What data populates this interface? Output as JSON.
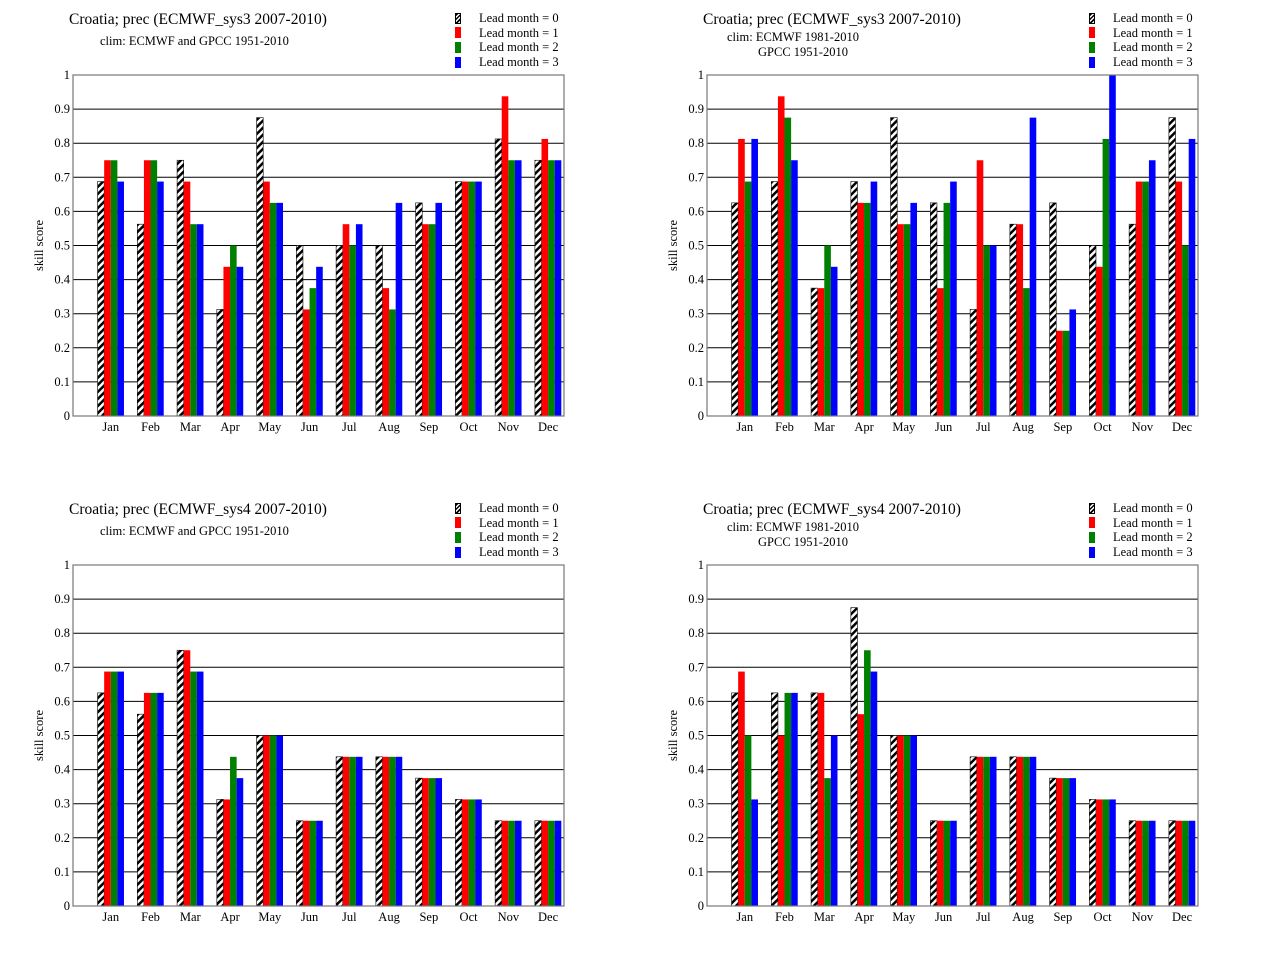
{
  "colors": {
    "lead0": "hatch-black-white",
    "lead1": "#ff0000",
    "lead2": "#008000",
    "lead3": "#0000ff",
    "grid": "#000000",
    "frame": "#777777"
  },
  "chart_data": [
    {
      "type": "bar",
      "title": "Croatia; prec (ECMWF_sys3 2007-2010)",
      "subtitle_lines": [
        "clim: ECMWF and GPCC 1951-2010"
      ],
      "xlabel": "",
      "ylabel": "skill  score",
      "ylim": [
        0,
        1
      ],
      "yticks": [
        "0",
        "0.1",
        "0.2",
        "0.3",
        "0.4",
        "0.5",
        "0.6",
        "0.7",
        "0.8",
        "0.9",
        "1"
      ],
      "grid": true,
      "legend_position": "top-right",
      "categories": [
        "Jan",
        "Feb",
        "Mar",
        "Apr",
        "May",
        "Jun",
        "Jul",
        "Aug",
        "Sep",
        "Oct",
        "Nov",
        "Dec"
      ],
      "series": [
        {
          "name": "Lead month = 0",
          "values": [
            0.6875,
            0.5625,
            0.75,
            0.3125,
            0.875,
            0.5,
            0.5,
            0.5,
            0.625,
            0.6875,
            0.8125,
            0.75
          ]
        },
        {
          "name": "Lead month = 1",
          "values": [
            0.75,
            0.75,
            0.6875,
            0.4375,
            0.6875,
            0.3125,
            0.5625,
            0.375,
            0.5625,
            0.6875,
            0.9375,
            0.8125
          ]
        },
        {
          "name": "Lead month = 2",
          "values": [
            0.75,
            0.75,
            0.5625,
            0.5,
            0.625,
            0.375,
            0.5,
            0.3125,
            0.5625,
            0.6875,
            0.75,
            0.75
          ]
        },
        {
          "name": "Lead month = 3",
          "values": [
            0.6875,
            0.6875,
            0.5625,
            0.4375,
            0.625,
            0.4375,
            0.5625,
            0.625,
            0.625,
            0.6875,
            0.75,
            0.75
          ]
        }
      ]
    },
    {
      "type": "bar",
      "title": "Croatia; prec (ECMWF_sys3 2007-2010)",
      "subtitle_lines": [
        "clim: ECMWF 1981-2010",
        "GPCC 1951-2010"
      ],
      "xlabel": "",
      "ylabel": "skill  score",
      "ylim": [
        0,
        1
      ],
      "yticks": [
        "0",
        "0.1",
        "0.2",
        "0.3",
        "0.4",
        "0.5",
        "0.6",
        "0.7",
        "0.8",
        "0.9",
        "1"
      ],
      "grid": true,
      "legend_position": "top-right",
      "categories": [
        "Jan",
        "Feb",
        "Mar",
        "Apr",
        "May",
        "Jun",
        "Jul",
        "Aug",
        "Sep",
        "Oct",
        "Nov",
        "Dec"
      ],
      "series": [
        {
          "name": "Lead month = 0",
          "values": [
            0.625,
            0.6875,
            0.375,
            0.6875,
            0.875,
            0.625,
            0.3125,
            0.5625,
            0.625,
            0.5,
            0.5625,
            0.875
          ]
        },
        {
          "name": "Lead month = 1",
          "values": [
            0.8125,
            0.9375,
            0.375,
            0.625,
            0.5625,
            0.375,
            0.75,
            0.5625,
            0.25,
            0.4375,
            0.6875,
            0.6875
          ]
        },
        {
          "name": "Lead month = 2",
          "values": [
            0.6875,
            0.875,
            0.5,
            0.625,
            0.5625,
            0.625,
            0.5,
            0.375,
            0.25,
            0.8125,
            0.6875,
            0.5
          ]
        },
        {
          "name": "Lead month = 3",
          "values": [
            0.8125,
            0.75,
            0.4375,
            0.6875,
            0.625,
            0.6875,
            0.5,
            0.875,
            0.3125,
            1.0,
            0.75,
            0.8125
          ]
        }
      ]
    },
    {
      "type": "bar",
      "title": "Croatia; prec (ECMWF_sys4 2007-2010)",
      "subtitle_lines": [
        "clim: ECMWF and GPCC 1951-2010"
      ],
      "xlabel": "",
      "ylabel": "skill  score",
      "ylim": [
        0,
        1
      ],
      "yticks": [
        "0",
        "0.1",
        "0.2",
        "0.3",
        "0.4",
        "0.5",
        "0.6",
        "0.7",
        "0.8",
        "0.9",
        "1"
      ],
      "grid": true,
      "legend_position": "top-right",
      "categories": [
        "Jan",
        "Feb",
        "Mar",
        "Apr",
        "May",
        "Jun",
        "Jul",
        "Aug",
        "Sep",
        "Oct",
        "Nov",
        "Dec"
      ],
      "series": [
        {
          "name": "Lead month = 0",
          "values": [
            0.625,
            0.5625,
            0.75,
            0.3125,
            0.5,
            0.25,
            0.4375,
            0.4375,
            0.375,
            0.3125,
            0.25,
            0.25
          ]
        },
        {
          "name": "Lead month = 1",
          "values": [
            0.6875,
            0.625,
            0.75,
            0.3125,
            0.5,
            0.25,
            0.4375,
            0.4375,
            0.375,
            0.3125,
            0.25,
            0.25
          ]
        },
        {
          "name": "Lead month = 2",
          "values": [
            0.6875,
            0.625,
            0.6875,
            0.4375,
            0.5,
            0.25,
            0.4375,
            0.4375,
            0.375,
            0.3125,
            0.25,
            0.25
          ]
        },
        {
          "name": "Lead month = 3",
          "values": [
            0.6875,
            0.625,
            0.6875,
            0.375,
            0.5,
            0.25,
            0.4375,
            0.4375,
            0.375,
            0.3125,
            0.25,
            0.25
          ]
        }
      ]
    },
    {
      "type": "bar",
      "title": "Croatia; prec (ECMWF_sys4 2007-2010)",
      "subtitle_lines": [
        "clim: ECMWF 1981-2010",
        "GPCC 1951-2010"
      ],
      "xlabel": "",
      "ylabel": "skill  score",
      "ylim": [
        0,
        1
      ],
      "yticks": [
        "0",
        "0.1",
        "0.2",
        "0.3",
        "0.4",
        "0.5",
        "0.6",
        "0.7",
        "0.8",
        "0.9",
        "1"
      ],
      "grid": true,
      "legend_position": "top-right",
      "categories": [
        "Jan",
        "Feb",
        "Mar",
        "Apr",
        "May",
        "Jun",
        "Jul",
        "Aug",
        "Sep",
        "Oct",
        "Nov",
        "Dec"
      ],
      "series": [
        {
          "name": "Lead month = 0",
          "values": [
            0.625,
            0.625,
            0.625,
            0.875,
            0.5,
            0.25,
            0.4375,
            0.4375,
            0.375,
            0.3125,
            0.25,
            0.25
          ]
        },
        {
          "name": "Lead month = 1",
          "values": [
            0.6875,
            0.5,
            0.625,
            0.5625,
            0.5,
            0.25,
            0.4375,
            0.4375,
            0.375,
            0.3125,
            0.25,
            0.25
          ]
        },
        {
          "name": "Lead month = 2",
          "values": [
            0.5,
            0.625,
            0.375,
            0.75,
            0.5,
            0.25,
            0.4375,
            0.4375,
            0.375,
            0.3125,
            0.25,
            0.25
          ]
        },
        {
          "name": "Lead month = 3",
          "values": [
            0.3125,
            0.625,
            0.5,
            0.6875,
            0.5,
            0.25,
            0.4375,
            0.4375,
            0.375,
            0.3125,
            0.25,
            0.25
          ]
        }
      ]
    }
  ]
}
